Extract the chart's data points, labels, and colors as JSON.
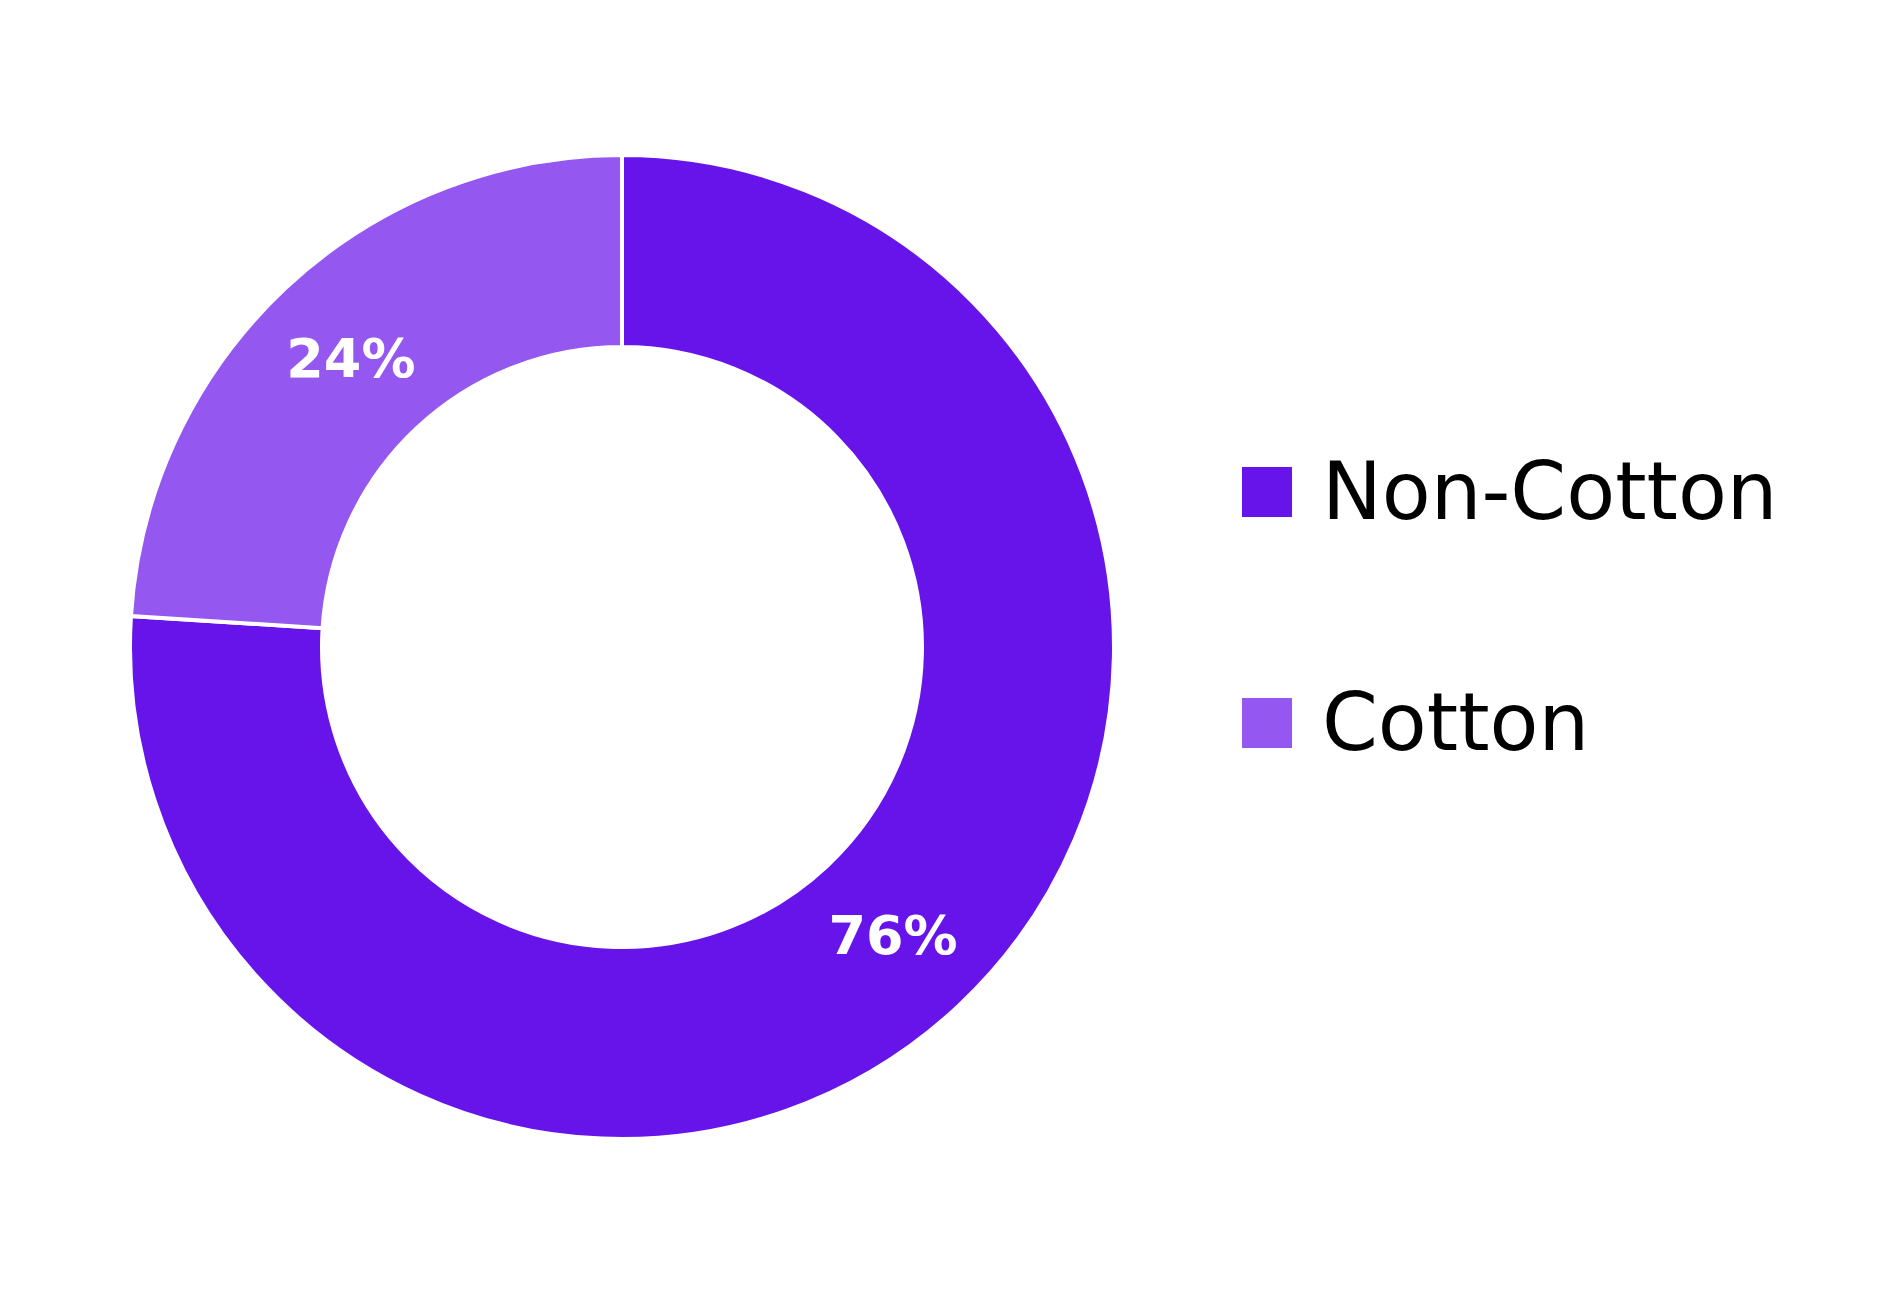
{
  "chart_data": {
    "type": "donut",
    "categories": [
      "Non-Cotton",
      "Cotton"
    ],
    "values": [
      76,
      24
    ],
    "colors": [
      "#6614ea",
      "#9457f0"
    ],
    "value_labels": [
      "76%",
      "24%"
    ],
    "legend": "right"
  }
}
